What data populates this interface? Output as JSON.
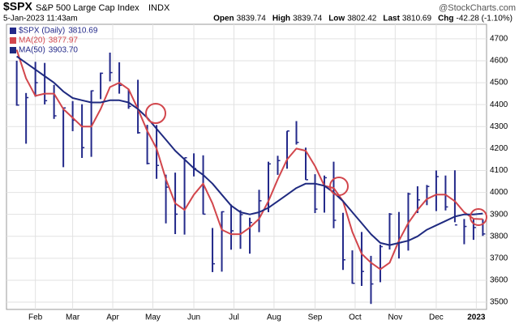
{
  "header": {
    "symbol": "$SPX",
    "name": "S&P 500 Large Cap Index",
    "exchange": "INDX",
    "brand": "@StockCharts.com",
    "date": "5-Jan-2023 11:43am",
    "stats": [
      {
        "label": "Open",
        "value": "3839.74"
      },
      {
        "label": "High",
        "value": "3839.74"
      },
      {
        "label": "Low",
        "value": "3802.42"
      },
      {
        "label": "Last",
        "value": "3810.69"
      },
      {
        "label": "Chg",
        "value": "-42.28 (-1.10%)"
      }
    ]
  },
  "chart_data": {
    "type": "ohlc",
    "xlim": [
      -1.1,
      50.4
    ],
    "xticks": [
      {
        "value": 2,
        "label": "Feb"
      },
      {
        "value": 6,
        "label": "Mar"
      },
      {
        "value": 10.3,
        "label": "Apr"
      },
      {
        "value": 14.6,
        "label": "May"
      },
      {
        "value": 19,
        "label": "Jun"
      },
      {
        "value": 23.3,
        "label": "Jul"
      },
      {
        "value": 27.6,
        "label": "Aug"
      },
      {
        "value": 32,
        "label": "Sep"
      },
      {
        "value": 36.3,
        "label": "Oct"
      },
      {
        "value": 40.6,
        "label": "Nov"
      },
      {
        "value": 45,
        "label": "Dec"
      },
      {
        "value": 49.3,
        "label": "2023"
      }
    ],
    "ylim": [
      3467,
      4766
    ],
    "yticks": [
      3500,
      3600,
      3700,
      3800,
      3900,
      4000,
      4100,
      4200,
      4300,
      4400,
      4500,
      4600,
      4700
    ],
    "grid": true,
    "series": [
      {
        "name": "$SPX (Daily)",
        "legend_value": "3810.69",
        "color": "#23298a",
        "high": [
          4600,
          4453,
          4595,
          4590,
          4490,
          4385,
          4416,
          4402,
          4465,
          4546,
          4637,
          4593,
          4471,
          4513,
          4308,
          4307,
          4081,
          4090,
          4158,
          4178,
          4169,
          3838,
          3914,
          3945,
          3919,
          3885,
          4012,
          4140,
          4167,
          4280,
          4325,
          4204,
          4083,
          4077,
          4140,
          3907,
          3736,
          3820,
          3711,
          3762,
          3906,
          3911,
          3999,
          4028,
          4034,
          4100,
          4077,
          4101,
          3879,
          3878,
          3878
        ],
        "low": [
          4395,
          4222,
          4436,
          4401,
          4335,
          4115,
          4279,
          4157,
          4162,
          4425,
          4506,
          4450,
          4381,
          4268,
          4128,
          4062,
          3859,
          3810,
          3808,
          4073,
          3900,
          3637,
          3639,
          3739,
          3743,
          3721,
          3819,
          3910,
          4080,
          4108,
          4218,
          4057,
          3906,
          3908,
          3837,
          3647,
          3584,
          3574,
          3492,
          3591,
          3740,
          3699,
          3735,
          3906,
          3942,
          3915,
          3918,
          3864,
          3764,
          3784,
          3802
        ],
        "close": [
          4398,
          4432,
          4500,
          4418,
          4349,
          4385,
          4329,
          4204,
          4463,
          4543,
          4546,
          4488,
          4392,
          4272,
          4132,
          4123,
          4024,
          3901,
          4158,
          4109,
          3901,
          3675,
          3912,
          3825,
          3899,
          3863,
          3962,
          4130,
          4145,
          4280,
          4228,
          4058,
          3924,
          4067,
          3873,
          3693,
          3586,
          3640,
          3583,
          3753,
          3901,
          3771,
          3993,
          3966,
          4027,
          4072,
          3934,
          3852,
          3845,
          3840,
          3811
        ]
      },
      {
        "name": "MA(20)",
        "legend_value": "3877.97",
        "color": "#d2464c",
        "values": [
          4650,
          4520,
          4440,
          4450,
          4450,
          4380,
          4340,
          4300,
          4300,
          4380,
          4480,
          4500,
          4470,
          4380,
          4280,
          4200,
          4060,
          3950,
          3920,
          3990,
          4040,
          3950,
          3830,
          3810,
          3810,
          3840,
          3880,
          3960,
          4060,
          4150,
          4200,
          4190,
          4120,
          4030,
          4020,
          3960,
          3820,
          3720,
          3680,
          3650,
          3680,
          3780,
          3860,
          3920,
          3970,
          3990,
          3990,
          3960,
          3910,
          3880,
          3878
        ]
      },
      {
        "name": "MA(50)",
        "legend_value": "3903.70",
        "color": "#1f2a80",
        "values": [
          4620,
          4590,
          4560,
          4530,
          4500,
          4460,
          4430,
          4420,
          4410,
          4410,
          4420,
          4420,
          4410,
          4380,
          4340,
          4290,
          4240,
          4190,
          4150,
          4110,
          4080,
          4040,
          3990,
          3940,
          3910,
          3900,
          3910,
          3930,
          3960,
          3990,
          4020,
          4040,
          4040,
          4030,
          4000,
          3960,
          3910,
          3860,
          3810,
          3770,
          3760,
          3770,
          3780,
          3800,
          3830,
          3850,
          3870,
          3890,
          3900,
          3900,
          3904
        ]
      }
    ]
  }
}
